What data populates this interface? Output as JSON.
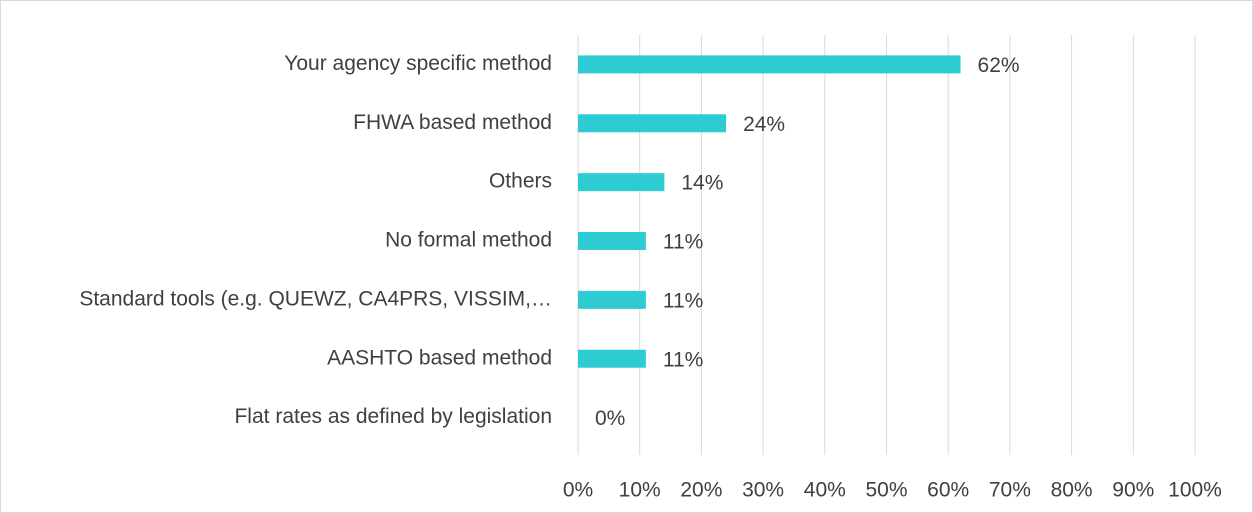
{
  "chart_data": {
    "type": "bar",
    "orientation": "horizontal",
    "categories": [
      "Your agency specific method",
      "FHWA based method",
      "Others",
      "No formal method",
      "Standard tools (e.g. QUEWZ, CA4PRS, VISSIM,…",
      "AASHTO based method",
      "Flat rates as defined by legislation"
    ],
    "values": [
      62,
      24,
      14,
      11,
      11,
      11,
      0
    ],
    "value_labels": [
      "62%",
      "24%",
      "14%",
      "11%",
      "11%",
      "11%",
      "0%"
    ],
    "color": "#2ecbd3",
    "xlim": [
      0,
      100
    ],
    "xticks": [
      {
        "value": 0,
        "label": "0%"
      },
      {
        "value": 10,
        "label": "10%"
      },
      {
        "value": 20,
        "label": "20%"
      },
      {
        "value": 30,
        "label": "30%"
      },
      {
        "value": 40,
        "label": "40%"
      },
      {
        "value": 50,
        "label": "50%"
      },
      {
        "value": 60,
        "label": "60%"
      },
      {
        "value": 70,
        "label": "70%"
      },
      {
        "value": 80,
        "label": "80%"
      },
      {
        "value": 90,
        "label": "90%"
      },
      {
        "value": 100,
        "label": "100%"
      }
    ],
    "grid": true
  }
}
